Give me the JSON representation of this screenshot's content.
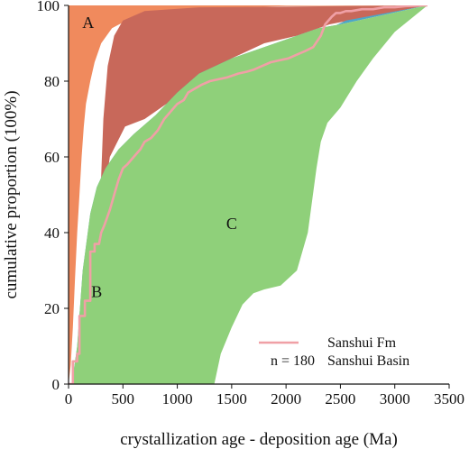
{
  "chart_data": {
    "type": "area",
    "xlabel": "crystallization age - deposition age (Ma)",
    "ylabel": "cumulative proportion (100%)",
    "xlim": [
      0,
      3500
    ],
    "ylim": [
      0,
      100
    ],
    "xticks": [
      "0",
      "500",
      "1000",
      "1500",
      "2000",
      "2500",
      "3000",
      "3500"
    ],
    "yticks": [
      "0",
      "20",
      "40",
      "60",
      "80",
      "100"
    ],
    "grid": false,
    "regions": [
      {
        "label": "A",
        "color": "#f08a5d",
        "upper": [
          [
            0,
            100
          ],
          [
            3300,
            100
          ]
        ],
        "lower": [
          [
            0,
            0
          ],
          [
            20,
            5
          ],
          [
            40,
            15
          ],
          [
            60,
            28
          ],
          [
            80,
            40
          ],
          [
            100,
            50
          ],
          [
            120,
            60
          ],
          [
            140,
            68
          ],
          [
            160,
            74
          ],
          [
            200,
            80
          ],
          [
            240,
            85
          ],
          [
            300,
            90
          ],
          [
            400,
            94
          ],
          [
            600,
            97
          ],
          [
            1000,
            99
          ],
          [
            2000,
            99.8
          ],
          [
            3300,
            100
          ]
        ]
      },
      {
        "label": "",
        "color": "#c8685a",
        "upper": [
          [
            280,
            40
          ],
          [
            320,
            70
          ],
          [
            360,
            84
          ],
          [
            420,
            92
          ],
          [
            500,
            96
          ],
          [
            700,
            98.5
          ],
          [
            1200,
            99.5
          ],
          [
            3300,
            100
          ]
        ],
        "lower": [
          [
            280,
            40
          ],
          [
            380,
            60
          ],
          [
            520,
            68
          ],
          [
            700,
            70
          ],
          [
            900,
            74
          ],
          [
            1200,
            80
          ],
          [
            1500,
            86
          ],
          [
            1800,
            90
          ],
          [
            2100,
            92
          ],
          [
            2400,
            95
          ],
          [
            3300,
            100
          ]
        ]
      },
      {
        "label": "B",
        "color": "#4da6c7",
        "upper": [
          [
            30,
            0
          ],
          [
            80,
            10
          ],
          [
            130,
            30
          ],
          [
            200,
            45
          ],
          [
            260,
            52
          ],
          [
            340,
            57
          ],
          [
            460,
            62
          ],
          [
            600,
            66
          ],
          [
            800,
            71
          ],
          [
            1000,
            77
          ],
          [
            1200,
            82
          ],
          [
            1500,
            86
          ],
          [
            1800,
            89
          ],
          [
            2100,
            92
          ],
          [
            2300,
            94
          ],
          [
            2500,
            95
          ],
          [
            3300,
            100
          ]
        ],
        "lower": [
          [
            30,
            0
          ],
          [
            100,
            3
          ],
          [
            160,
            9
          ],
          [
            220,
            10
          ],
          [
            330,
            12
          ],
          [
            450,
            22
          ],
          [
            550,
            32
          ],
          [
            650,
            38
          ],
          [
            800,
            42
          ],
          [
            900,
            48
          ],
          [
            1000,
            53
          ],
          [
            1100,
            57
          ],
          [
            1200,
            59
          ],
          [
            1400,
            63
          ],
          [
            1600,
            68
          ],
          [
            1700,
            73
          ],
          [
            1850,
            80
          ],
          [
            2000,
            84
          ],
          [
            2150,
            88
          ],
          [
            2250,
            91
          ],
          [
            2400,
            94
          ],
          [
            2550,
            96
          ],
          [
            3300,
            100
          ]
        ]
      },
      {
        "label": "C",
        "color": "#8fd07a",
        "upper": [
          [
            30,
            0
          ],
          [
            80,
            10
          ],
          [
            130,
            30
          ],
          [
            200,
            45
          ],
          [
            260,
            52
          ],
          [
            340,
            57
          ],
          [
            460,
            62
          ],
          [
            600,
            66
          ],
          [
            800,
            71
          ],
          [
            1000,
            77
          ],
          [
            1200,
            82
          ],
          [
            1500,
            86
          ],
          [
            1800,
            89
          ],
          [
            2100,
            92
          ],
          [
            2300,
            94
          ],
          [
            2500,
            95
          ],
          [
            3300,
            100
          ]
        ],
        "lower": [
          [
            1340,
            0
          ],
          [
            1400,
            8
          ],
          [
            1500,
            15
          ],
          [
            1600,
            21
          ],
          [
            1700,
            24
          ],
          [
            1800,
            25
          ],
          [
            1950,
            26
          ],
          [
            2100,
            30
          ],
          [
            2200,
            40
          ],
          [
            2280,
            57
          ],
          [
            2320,
            64
          ],
          [
            2380,
            69
          ],
          [
            2500,
            73
          ],
          [
            2650,
            80
          ],
          [
            2800,
            86
          ],
          [
            3000,
            93
          ],
          [
            3300,
            100
          ]
        ]
      }
    ],
    "series": [
      {
        "name": "Sanshui Fm",
        "color": "#f0a0a6",
        "x": [
          0,
          40,
          40,
          80,
          80,
          100,
          100,
          150,
          150,
          200,
          200,
          240,
          240,
          280,
          300,
          330,
          380,
          420,
          460,
          500,
          540,
          600,
          660,
          700,
          760,
          820,
          880,
          940,
          1000,
          1060,
          1100,
          1160,
          1220,
          1300,
          1380,
          1460,
          1560,
          1640,
          1700,
          1780,
          1860,
          1940,
          2020,
          2100,
          2180,
          2250,
          2320,
          2360,
          2420,
          2460,
          2500,
          2550,
          2600,
          2700,
          2800,
          2900,
          3000,
          3100,
          3300
        ],
        "y": [
          0,
          0,
          6,
          6,
          8,
          8,
          18,
          18,
          22,
          22,
          35,
          35,
          37,
          37,
          40,
          42,
          46,
          50,
          54,
          57,
          58,
          60,
          62,
          64,
          65,
          67,
          70,
          72,
          74,
          75,
          77,
          78,
          79,
          80,
          80.5,
          81,
          82,
          82.5,
          83,
          84,
          85,
          85.5,
          86,
          87,
          88,
          89,
          92,
          95,
          97,
          98,
          98,
          98.5,
          98.5,
          99,
          99,
          99.5,
          99.5,
          99.8,
          100
        ]
      }
    ],
    "region_label_positions": {
      "A": [
        180,
        94
      ],
      "B": [
        260,
        23
      ],
      "C": [
        1500,
        41
      ]
    },
    "legend": {
      "placement": "bottom-right",
      "items": [
        {
          "symbol": "line",
          "color": "#f0a0a6",
          "prefix": "",
          "text": "Sanshui Fm"
        },
        {
          "symbol": "none",
          "color": "",
          "prefix": "n = 180",
          "text": "Sanshui Basin"
        }
      ]
    }
  }
}
